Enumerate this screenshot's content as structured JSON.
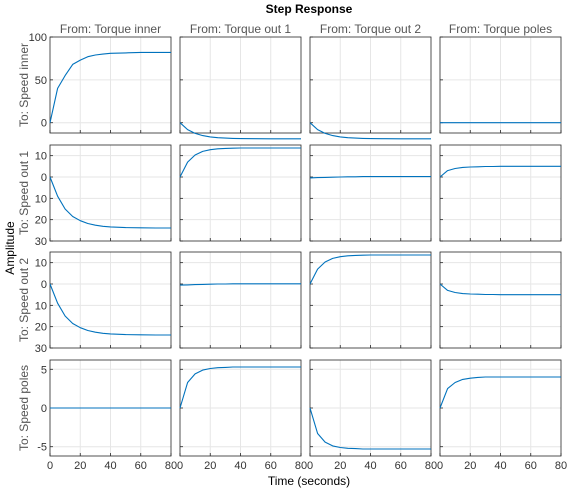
{
  "chart_data": {
    "type": "line",
    "title": "Step Response",
    "xlabel": "Time (seconds)",
    "ylabel": "Amplitude",
    "grid": true,
    "line_color": "#0072BD",
    "columns": [
      "From: Torque inner",
      "From: Torque out 1",
      "From: Torque out 2",
      "From: Torque poles"
    ],
    "rows": [
      "To: Speed inner",
      "To: Speed out 1",
      "To: Speed out 2",
      "To: Speed poles"
    ],
    "xlim": [
      0,
      80
    ],
    "xticks": [
      0,
      20,
      40,
      60,
      80
    ],
    "x": [
      0,
      5,
      10,
      15,
      20,
      25,
      30,
      35,
      40,
      50,
      60,
      70,
      80
    ],
    "row_axes": [
      {
        "ylim": [
          -12,
          100
        ],
        "yticks": [
          0,
          50,
          100
        ]
      },
      {
        "ylim": [
          -30,
          15
        ],
        "yticks": [
          10,
          0,
          -10,
          -20,
          -30
        ],
        "ytick_labels": [
          "10",
          "0",
          "10",
          "20",
          "30"
        ]
      },
      {
        "ylim": [
          -30,
          15
        ],
        "yticks": [
          10,
          0,
          -10,
          -20,
          -30
        ],
        "ytick_labels": [
          "10",
          "0",
          "10",
          "20",
          "30"
        ]
      },
      {
        "ylim": [
          -6.2,
          6.2
        ],
        "yticks": [
          5,
          0,
          -5
        ]
      }
    ],
    "series": [
      {
        "row": 0,
        "col": 0,
        "y": [
          0,
          40,
          55,
          68,
          73,
          77,
          79,
          80,
          81,
          81.5,
          82,
          82,
          82
        ]
      },
      {
        "row": 0,
        "col": 1,
        "y": [
          0,
          -8,
          -12.5,
          -15,
          -16.5,
          -17.5,
          -18,
          -18.3,
          -18.5,
          -18.7,
          -18.8,
          -18.8,
          -18.8
        ]
      },
      {
        "row": 0,
        "col": 2,
        "y": [
          0,
          -8,
          -12.5,
          -15,
          -16.5,
          -17.5,
          -18,
          -18.3,
          -18.5,
          -18.7,
          -18.8,
          -18.8,
          -18.8
        ]
      },
      {
        "row": 0,
        "col": 3,
        "y": [
          0,
          0,
          0,
          0,
          0,
          0,
          0,
          0,
          0,
          0,
          0,
          0,
          0
        ]
      },
      {
        "row": 1,
        "col": 0,
        "y": [
          0,
          -9,
          -15,
          -18.5,
          -20.5,
          -21.8,
          -22.6,
          -23.1,
          -23.4,
          -23.7,
          -23.8,
          -23.9,
          -23.9
        ]
      },
      {
        "row": 1,
        "col": 1,
        "y": [
          0,
          7,
          10.3,
          12,
          12.8,
          13.2,
          13.4,
          13.5,
          13.6,
          13.6,
          13.6,
          13.6,
          13.6
        ]
      },
      {
        "row": 1,
        "col": 2,
        "y": [
          -0.4,
          -0.3,
          -0.2,
          -0.1,
          0,
          0.1,
          0.1,
          0.2,
          0.2,
          0.2,
          0.2,
          0.2,
          0.2
        ]
      },
      {
        "row": 1,
        "col": 3,
        "y": [
          0,
          3,
          4,
          4.5,
          4.7,
          4.8,
          4.9,
          4.9,
          5,
          5,
          5,
          5,
          5
        ]
      },
      {
        "row": 2,
        "col": 0,
        "y": [
          0,
          -9,
          -15,
          -18.5,
          -20.5,
          -21.8,
          -22.6,
          -23.1,
          -23.4,
          -23.7,
          -23.8,
          -23.9,
          -23.9
        ]
      },
      {
        "row": 2,
        "col": 1,
        "y": [
          -0.5,
          -0.4,
          -0.3,
          -0.2,
          -0.1,
          0,
          0,
          0.1,
          0.1,
          0.1,
          0.1,
          0.1,
          0.1
        ]
      },
      {
        "row": 2,
        "col": 2,
        "y": [
          0,
          7,
          10.3,
          12,
          12.8,
          13.2,
          13.4,
          13.5,
          13.6,
          13.6,
          13.6,
          13.6,
          13.6
        ]
      },
      {
        "row": 2,
        "col": 3,
        "y": [
          0,
          -3,
          -4,
          -4.5,
          -4.7,
          -4.8,
          -4.9,
          -4.9,
          -5,
          -5,
          -5,
          -5,
          -5
        ]
      },
      {
        "row": 3,
        "col": 0,
        "y": [
          0,
          0,
          0,
          0,
          0,
          0,
          0,
          0,
          0,
          0,
          0,
          0,
          0
        ]
      },
      {
        "row": 3,
        "col": 1,
        "y": [
          0,
          3.3,
          4.4,
          4.9,
          5.1,
          5.2,
          5.25,
          5.3,
          5.3,
          5.3,
          5.3,
          5.3,
          5.3
        ]
      },
      {
        "row": 3,
        "col": 2,
        "y": [
          0,
          -3.3,
          -4.4,
          -4.9,
          -5.1,
          -5.2,
          -5.25,
          -5.3,
          -5.3,
          -5.3,
          -5.3,
          -5.3,
          -5.3
        ]
      },
      {
        "row": 3,
        "col": 3,
        "y": [
          0,
          2.5,
          3.3,
          3.7,
          3.85,
          3.95,
          4,
          4,
          4,
          4,
          4,
          4,
          4
        ]
      }
    ]
  }
}
